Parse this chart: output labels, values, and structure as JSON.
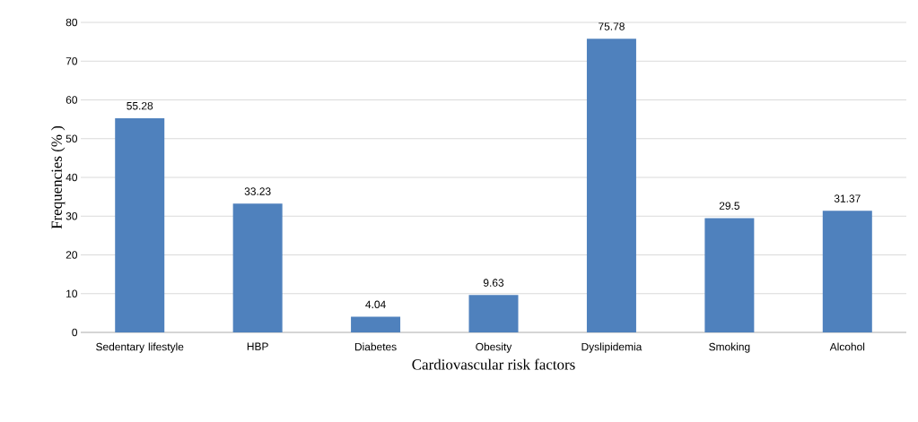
{
  "chart_data": {
    "type": "bar",
    "xlabel": "Cardiovascular risk factors",
    "ylabel": "Frequencies (% )",
    "categories": [
      "Sedentary lifestyle",
      "HBP",
      "Diabetes",
      "Obesity",
      "Dyslipidemia",
      "Smoking",
      "Alcohol"
    ],
    "values": [
      55.28,
      33.23,
      4.04,
      9.63,
      75.78,
      29.5,
      31.37
    ],
    "color": "#4f81bd",
    "ylim": [
      0,
      80
    ],
    "yticks": [
      0,
      10,
      20,
      30,
      40,
      50,
      60,
      70,
      80
    ],
    "grid": "y",
    "data_labels": true
  }
}
